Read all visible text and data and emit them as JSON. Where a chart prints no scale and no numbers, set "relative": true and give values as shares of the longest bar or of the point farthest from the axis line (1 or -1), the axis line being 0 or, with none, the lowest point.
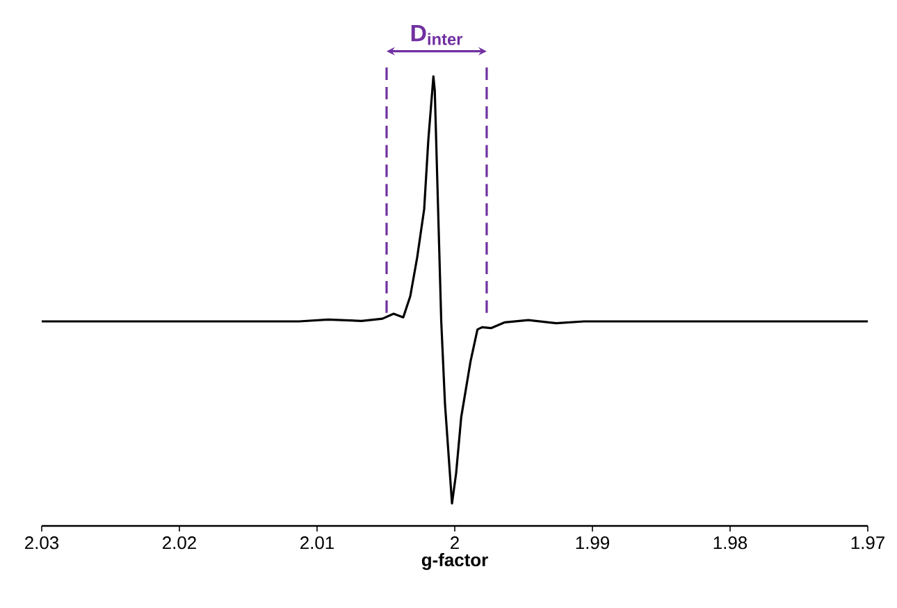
{
  "chart_data": {
    "type": "line",
    "xlabel": "g-factor",
    "relative": true,
    "xlim": [
      2.03,
      1.97
    ],
    "xticks": [
      2.03,
      2.02,
      2.01,
      2,
      1.99,
      1.98,
      1.97
    ],
    "tick_labels": "x",
    "marker": "none",
    "line_style": "solid",
    "series": [
      {
        "color": "#000000",
        "x": [
          2.03,
          2.0179,
          2.01131,
          2.00919,
          2.00677,
          2.00525,
          2.00444,
          2.00374,
          2.00323,
          2.00273,
          2.00222,
          2.00192,
          2.00155,
          2.00145,
          2.00098,
          2.00071,
          2.0002,
          1.9999,
          1.99953,
          1.99886,
          1.99835,
          1.99801,
          1.99737,
          1.99636,
          1.99465,
          1.99263,
          1.99061,
          1.97
        ],
        "values": [
          0.455,
          0.455,
          0.455,
          0.459,
          0.456,
          0.461,
          0.472,
          0.464,
          0.511,
          0.597,
          0.705,
          0.858,
          1,
          0.968,
          0.455,
          0.272,
          0.05,
          0.117,
          0.242,
          0.365,
          0.437,
          0.442,
          0.44,
          0.453,
          0.458,
          0.451,
          0.455,
          0.455
        ]
      }
    ],
    "ref_lines": [
      {
        "axis": "x",
        "value": 2.00495,
        "color": "#7030a0",
        "line_style": "dashed"
      },
      {
        "axis": "x",
        "value": 1.99768,
        "color": "#7030a0",
        "line_style": "dashed"
      }
    ],
    "annotations": [
      "D$_{inter}$"
    ]
  }
}
